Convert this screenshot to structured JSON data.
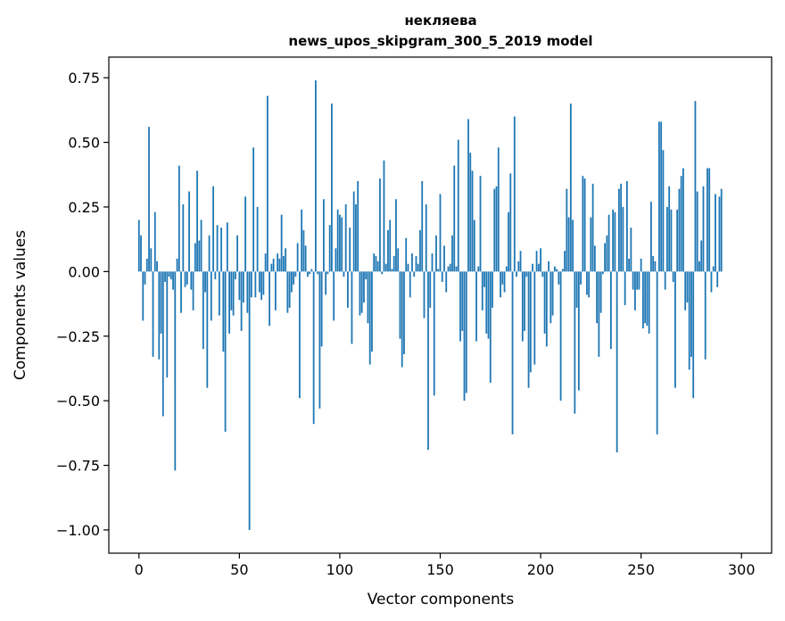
{
  "chart_data": {
    "type": "bar",
    "title": "некляева",
    "subtitle": "news_upos_skipgram_300_5_2019 model",
    "xlabel": "Vector components",
    "ylabel": "Components values",
    "xlim": [
      -15,
      315
    ],
    "ylim": [
      -1.09,
      0.83
    ],
    "x_ticks": [
      0,
      50,
      100,
      150,
      200,
      250,
      300
    ],
    "x_tick_labels": [
      "0",
      "50",
      "100",
      "150",
      "200",
      "250",
      "300"
    ],
    "y_ticks": [
      0.75,
      0.5,
      0.25,
      0.0,
      -0.25,
      -0.5,
      -0.75,
      -1.0
    ],
    "y_tick_labels": [
      "0.75",
      "0.50",
      "0.25",
      "0.00",
      "−0.25",
      "−0.50",
      "−0.75",
      "−1.00"
    ],
    "bar_color": "#1f77b4",
    "values": [
      0.2,
      0.14,
      -0.19,
      -0.05,
      0.05,
      0.56,
      0.09,
      -0.33,
      0.23,
      0.04,
      -0.34,
      -0.24,
      -0.56,
      -0.04,
      -0.41,
      -0.02,
      -0.03,
      -0.07,
      -0.77,
      0.05,
      0.41,
      -0.16,
      0.26,
      -0.06,
      -0.05,
      0.31,
      -0.07,
      -0.15,
      0.11,
      0.39,
      0.12,
      0.2,
      -0.3,
      -0.08,
      -0.45,
      0.14,
      -0.19,
      0.33,
      -0.03,
      0.18,
      -0.17,
      0.17,
      -0.31,
      -0.62,
      0.19,
      -0.24,
      -0.15,
      -0.17,
      -0.03,
      0.14,
      -0.11,
      -0.23,
      -0.12,
      0.29,
      -0.16,
      -1.0,
      -0.1,
      0.48,
      -0.1,
      0.25,
      -0.08,
      -0.11,
      -0.09,
      0.07,
      0.68,
      -0.21,
      0.03,
      0.05,
      -0.15,
      0.07,
      0.05,
      0.22,
      0.06,
      0.09,
      -0.16,
      -0.14,
      -0.08,
      -0.05,
      -0.02,
      0.11,
      -0.49,
      0.24,
      0.16,
      0.1,
      -0.02,
      -0.01,
      0.01,
      -0.59,
      0.74,
      -0.01,
      -0.53,
      -0.29,
      0.28,
      -0.09,
      -0.01,
      0.18,
      0.65,
      -0.19,
      0.09,
      0.24,
      0.22,
      0.21,
      -0.02,
      0.26,
      -0.14,
      0.17,
      -0.28,
      0.31,
      0.26,
      0.35,
      -0.17,
      -0.16,
      -0.12,
      -0.03,
      -0.2,
      -0.36,
      -0.31,
      0.07,
      0.06,
      0.04,
      0.36,
      -0.01,
      0.43,
      0.03,
      0.16,
      0.2,
      0.01,
      0.06,
      0.28,
      0.09,
      -0.26,
      -0.37,
      -0.32,
      0.13,
      0.03,
      -0.1,
      0.07,
      -0.02,
      0.06,
      0.03,
      0.16,
      0.35,
      -0.18,
      0.26,
      -0.69,
      -0.14,
      0.07,
      -0.48,
      0.14,
      0.01,
      0.3,
      -0.04,
      0.1,
      -0.08,
      0.02,
      0.03,
      0.14,
      0.41,
      0.02,
      0.51,
      -0.27,
      -0.23,
      -0.5,
      -0.47,
      0.59,
      0.46,
      0.39,
      0.2,
      -0.27,
      0.02,
      0.37,
      -0.15,
      -0.06,
      -0.24,
      -0.26,
      -0.43,
      -0.14,
      0.32,
      0.33,
      0.48,
      -0.1,
      -0.05,
      -0.08,
      0.02,
      0.23,
      0.38,
      -0.63,
      0.6,
      -0.02,
      0.04,
      0.08,
      -0.27,
      -0.23,
      -0.02,
      -0.45,
      -0.39,
      0.03,
      -0.36,
      0.08,
      0.03,
      0.09,
      -0.02,
      -0.24,
      -0.29,
      0.04,
      -0.2,
      -0.17,
      0.02,
      0.01,
      -0.05,
      -0.5,
      0.01,
      0.08,
      0.32,
      0.21,
      0.65,
      0.2,
      -0.55,
      -0.14,
      -0.46,
      -0.05,
      0.37,
      0.36,
      -0.09,
      -0.1,
      0.21,
      0.34,
      0.1,
      -0.2,
      -0.33,
      -0.16,
      -0.01,
      0.11,
      0.14,
      0.22,
      -0.3,
      0.24,
      0.23,
      -0.7,
      0.32,
      0.34,
      0.25,
      -0.13,
      0.35,
      0.05,
      0.17,
      -0.07,
      -0.15,
      -0.07,
      -0.07,
      0.05,
      -0.22,
      -0.2,
      -0.21,
      -0.24,
      0.27,
      0.06,
      0.04,
      -0.63,
      0.58,
      0.58,
      0.47,
      -0.07,
      0.25,
      0.33,
      0.24,
      -0.04,
      -0.45,
      0.24,
      0.32,
      0.37,
      0.4,
      -0.15,
      -0.12,
      -0.38,
      -0.33,
      -0.49,
      0.66,
      0.31,
      0.04,
      0.12,
      0.33,
      -0.34,
      0.4,
      0.4,
      -0.08,
      0.02,
      0.3,
      -0.06,
      0.29,
      0.32
    ]
  }
}
